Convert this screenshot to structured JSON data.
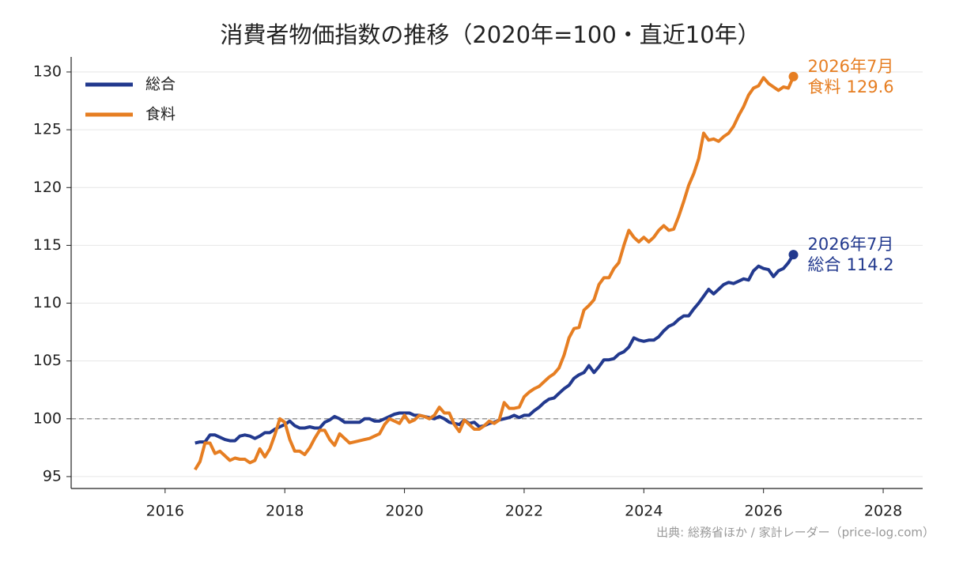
{
  "chart_data": {
    "type": "line",
    "title": "消費者物価指数の推移（2020年=100・直近10年）",
    "source": "出典: 総務省ほか / 家計レーダー（price-log.com）",
    "end_label": "2026年7月",
    "x": [
      2016.5,
      2016.583,
      2016.667,
      2016.75,
      2016.833,
      2016.917,
      2017,
      2017.083,
      2017.167,
      2017.25,
      2017.333,
      2017.417,
      2017.5,
      2017.583,
      2017.667,
      2017.75,
      2017.833,
      2017.917,
      2018,
      2018.083,
      2018.167,
      2018.25,
      2018.333,
      2018.417,
      2018.5,
      2018.583,
      2018.667,
      2018.75,
      2018.833,
      2018.917,
      2019,
      2019.083,
      2019.167,
      2019.25,
      2019.333,
      2019.417,
      2019.5,
      2019.583,
      2019.667,
      2019.75,
      2019.833,
      2019.917,
      2020,
      2020.083,
      2020.167,
      2020.25,
      2020.333,
      2020.417,
      2020.5,
      2020.583,
      2020.667,
      2020.75,
      2020.833,
      2020.917,
      2021,
      2021.083,
      2021.167,
      2021.25,
      2021.333,
      2021.417,
      2021.5,
      2021.583,
      2021.667,
      2021.75,
      2021.833,
      2021.917,
      2022,
      2022.083,
      2022.167,
      2022.25,
      2022.333,
      2022.417,
      2022.5,
      2022.583,
      2022.667,
      2022.75,
      2022.833,
      2022.917,
      2023,
      2023.083,
      2023.167,
      2023.25,
      2023.333,
      2023.417,
      2023.5,
      2023.583,
      2023.667,
      2023.75,
      2023.833,
      2023.917,
      2024,
      2024.083,
      2024.167,
      2024.25,
      2024.333,
      2024.417,
      2024.5,
      2024.583,
      2024.667,
      2024.75,
      2024.833,
      2024.917,
      2025,
      2025.083,
      2025.167,
      2025.25,
      2025.333,
      2025.417,
      2025.5,
      2025.583,
      2025.667,
      2025.75,
      2025.833,
      2025.917,
      2026,
      2026.083,
      2026.167,
      2026.25,
      2026.333,
      2026.417,
      2026.5
    ],
    "series": [
      {
        "name": "総合",
        "color": "#22398e",
        "values": [
          97.9,
          98.0,
          98.0,
          98.6,
          98.6,
          98.4,
          98.2,
          98.1,
          98.1,
          98.5,
          98.6,
          98.5,
          98.3,
          98.5,
          98.8,
          98.8,
          99.1,
          99.3,
          99.5,
          99.8,
          99.4,
          99.2,
          99.2,
          99.3,
          99.2,
          99.2,
          99.7,
          99.9,
          100.2,
          100.0,
          99.7,
          99.7,
          99.7,
          99.7,
          100.0,
          100.0,
          99.8,
          99.8,
          100.0,
          100.2,
          100.4,
          100.5,
          100.5,
          100.5,
          100.3,
          100.3,
          100.2,
          100.1,
          100.0,
          100.2,
          100.0,
          99.7,
          99.6,
          99.5,
          99.9,
          99.6,
          99.7,
          99.3,
          99.4,
          99.6,
          99.7,
          99.9,
          100.0,
          100.1,
          100.3,
          100.1,
          100.3,
          100.3,
          100.7,
          101.0,
          101.4,
          101.7,
          101.8,
          102.2,
          102.6,
          102.9,
          103.5,
          103.8,
          104.0,
          104.6,
          104.0,
          104.5,
          105.1,
          105.1,
          105.2,
          105.6,
          105.8,
          106.2,
          107.0,
          106.8,
          106.7,
          106.8,
          106.8,
          107.1,
          107.6,
          108.0,
          108.2,
          108.6,
          108.9,
          108.9,
          109.5,
          110.0,
          110.6,
          111.2,
          110.8,
          111.2,
          111.6,
          111.8,
          111.7,
          111.9,
          112.1,
          112.0,
          112.8,
          113.2,
          113.0,
          112.9,
          112.3,
          112.8,
          113.0,
          113.5,
          114.2
        ]
      },
      {
        "name": "食料",
        "color": "#e67e22",
        "values": [
          95.6,
          96.3,
          97.9,
          97.9,
          97.0,
          97.2,
          96.8,
          96.4,
          96.6,
          96.5,
          96.5,
          96.2,
          96.4,
          97.4,
          96.7,
          97.4,
          98.6,
          100.0,
          99.7,
          98.2,
          97.2,
          97.2,
          96.9,
          97.5,
          98.3,
          99.0,
          99.0,
          98.2,
          97.7,
          98.7,
          98.3,
          97.9,
          98.0,
          98.1,
          98.2,
          98.3,
          98.5,
          98.7,
          99.5,
          100.0,
          99.8,
          99.6,
          100.3,
          99.7,
          99.9,
          100.3,
          100.2,
          100.0,
          100.3,
          101.0,
          100.5,
          100.5,
          99.5,
          98.9,
          99.9,
          99.5,
          99.1,
          99.1,
          99.4,
          99.8,
          99.6,
          99.9,
          101.4,
          100.9,
          100.9,
          101.0,
          101.9,
          102.3,
          102.6,
          102.8,
          103.2,
          103.6,
          103.9,
          104.4,
          105.5,
          107.0,
          107.8,
          107.9,
          109.4,
          109.8,
          110.3,
          111.6,
          112.2,
          112.2,
          113.0,
          113.5,
          115.0,
          116.3,
          115.7,
          115.3,
          115.7,
          115.3,
          115.7,
          116.3,
          116.7,
          116.3,
          116.4,
          117.5,
          118.8,
          120.2,
          121.2,
          122.5,
          124.7,
          124.1,
          124.2,
          124.0,
          124.4,
          124.7,
          125.3,
          126.2,
          127.0,
          128.0,
          128.6,
          128.8,
          129.5,
          129.0,
          128.7,
          128.4,
          128.7,
          128.6,
          129.6
        ]
      }
    ],
    "xlim": [
      2014.43,
      2028.66
    ],
    "xticks": [
      2016,
      2018,
      2020,
      2022,
      2024,
      2026,
      2028
    ],
    "ylim": [
      93.97,
      131.3
    ],
    "yticks": [
      95,
      100,
      105,
      110,
      115,
      120,
      125,
      130
    ],
    "hline": 100,
    "grid": true,
    "legend": "upper-left"
  }
}
